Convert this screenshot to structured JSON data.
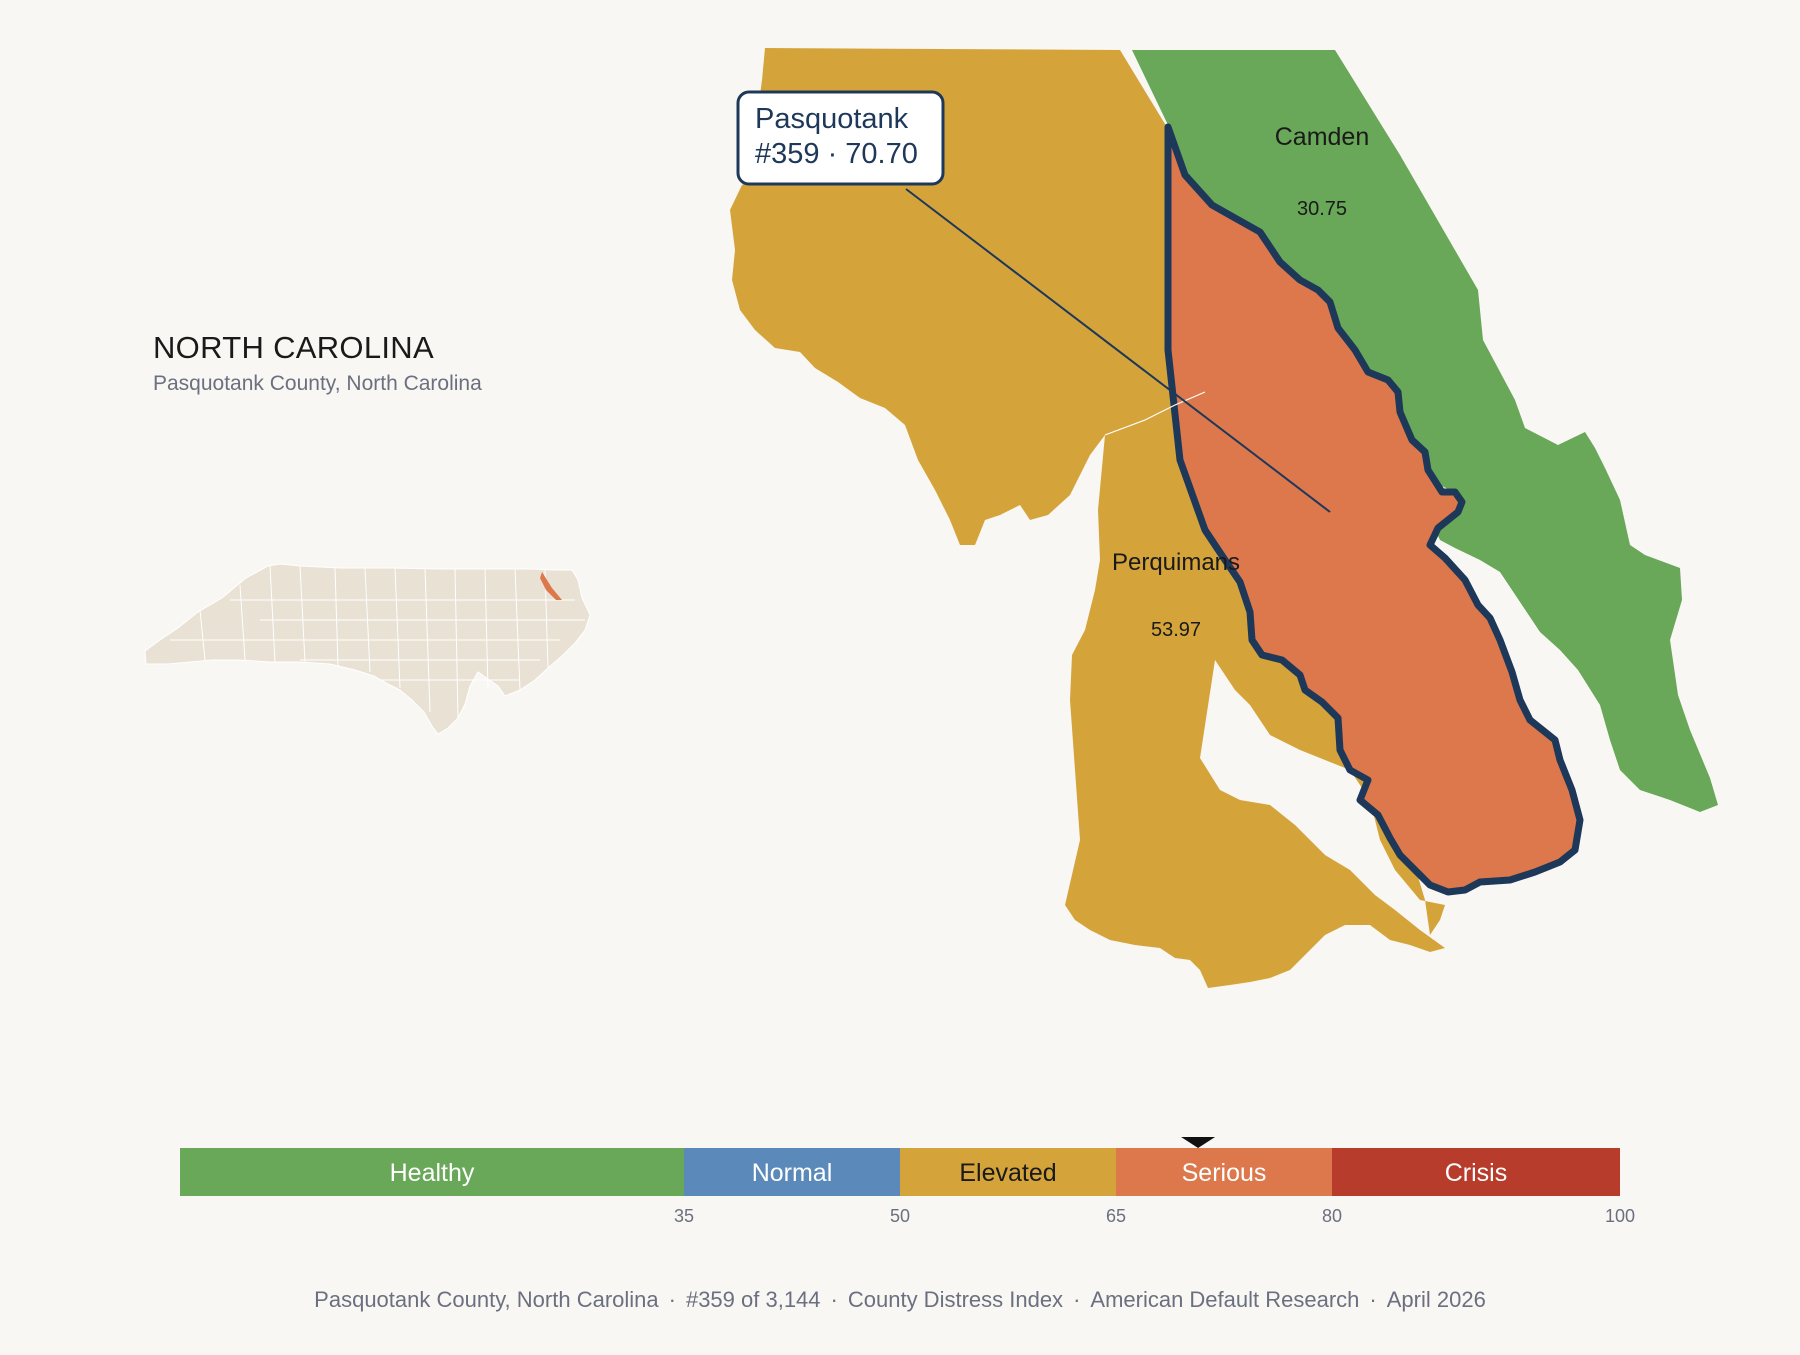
{
  "header": {
    "state": "NORTH CAROLINA",
    "subtitle": "Pasquotank County, North Carolina"
  },
  "callout": {
    "name": "Pasquotank",
    "detail": "#359 · 70.70"
  },
  "counties": [
    {
      "name": "Camden",
      "value": "30.75",
      "category": "Healthy"
    },
    {
      "name": "Perquimans",
      "value": "53.97",
      "category": "Elevated"
    },
    {
      "name": "Pasquotank",
      "value": "70.70",
      "category": "Serious",
      "highlighted": true
    },
    {
      "name": "",
      "value": "",
      "category": "Elevated"
    }
  ],
  "legend": {
    "bands": [
      {
        "label": "Healthy",
        "from": 0,
        "to": 35,
        "color": "#68a858",
        "text_color": "#ffffff"
      },
      {
        "label": "Normal",
        "from": 35,
        "to": 50,
        "color": "#5b8aba",
        "text_color": "#ffffff"
      },
      {
        "label": "Elevated",
        "from": 50,
        "to": 65,
        "color": "#d4a43b",
        "text_color": "#1a1a1a"
      },
      {
        "label": "Serious",
        "from": 65,
        "to": 80,
        "color": "#dc784b",
        "text_color": "#ffffff"
      },
      {
        "label": "Crisis",
        "from": 80,
        "to": 100,
        "color": "#b83c2c",
        "text_color": "#ffffff"
      }
    ],
    "ticks": [
      "35",
      "50",
      "65",
      "80",
      "100"
    ],
    "marker_value": 70.7
  },
  "colors": {
    "background": "#f9f7f3",
    "outline": "#1e3859",
    "inset_land": "#e8e1d4",
    "inset_highlight": "#dc784b"
  },
  "footer": {
    "county": "Pasquotank County, North Carolina",
    "rank": "#359 of 3,144",
    "index": "County Distress Index",
    "source": "American Default Research",
    "date": "April 2026"
  }
}
